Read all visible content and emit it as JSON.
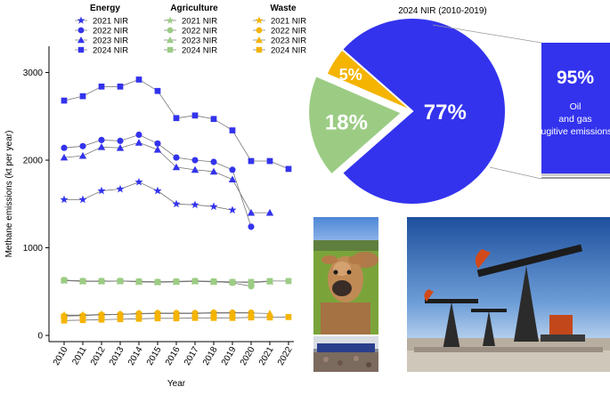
{
  "chart_data": [
    {
      "type": "line",
      "title": "",
      "xlabel": "Year",
      "ylabel": "Methane emissions (kt per year)",
      "xlim": [
        2010,
        2022
      ],
      "ylim": [
        0,
        3300
      ],
      "x_ticks": [
        "2010",
        "2011",
        "2012",
        "2013",
        "2014",
        "2015",
        "2016",
        "2017",
        "2018",
        "2019",
        "2020",
        "2021",
        "2022"
      ],
      "y_ticks": [
        "0",
        "1000",
        "2000",
        "3000"
      ],
      "legend_groups": [
        {
          "title": "Energy",
          "color": "#3333ee",
          "entries": [
            "2021 NIR",
            "2022 NIR",
            "2023 NIR",
            "2024 NIR"
          ]
        },
        {
          "title": "Agriculture",
          "color": "#9ccc84",
          "entries": [
            "2021 NIR",
            "2022 NIR",
            "2023 NIR",
            "2024 NIR"
          ]
        },
        {
          "title": "Waste",
          "color": "#f5b400",
          "entries": [
            "2021 NIR",
            "2022 NIR",
            "2023 NIR",
            "2024 NIR"
          ]
        }
      ],
      "legend_placement": "top",
      "series": [
        {
          "group": "Energy",
          "name": "2021 NIR",
          "marker": "star",
          "color": "#3333ee",
          "x": [
            2010,
            2011,
            2012,
            2013,
            2014,
            2015,
            2016,
            2017,
            2018,
            2019
          ],
          "y": [
            1550,
            1550,
            1650,
            1670,
            1750,
            1650,
            1500,
            1490,
            1470,
            1430
          ]
        },
        {
          "group": "Energy",
          "name": "2022 NIR",
          "marker": "circle",
          "color": "#3333ee",
          "x": [
            2010,
            2011,
            2012,
            2013,
            2014,
            2015,
            2016,
            2017,
            2018,
            2019,
            2020
          ],
          "y": [
            2140,
            2160,
            2230,
            2220,
            2290,
            2190,
            2030,
            2000,
            1980,
            1890,
            1240
          ]
        },
        {
          "group": "Energy",
          "name": "2023 NIR",
          "marker": "triangle",
          "color": "#3333ee",
          "x": [
            2010,
            2011,
            2012,
            2013,
            2014,
            2015,
            2016,
            2017,
            2018,
            2019,
            2020,
            2021
          ],
          "y": [
            2030,
            2050,
            2150,
            2140,
            2200,
            2120,
            1920,
            1890,
            1870,
            1780,
            1400,
            1400
          ]
        },
        {
          "group": "Energy",
          "name": "2024 NIR",
          "marker": "square",
          "color": "#3333ee",
          "x": [
            2010,
            2011,
            2012,
            2013,
            2014,
            2015,
            2016,
            2017,
            2018,
            2019,
            2020,
            2021,
            2022
          ],
          "y": [
            2680,
            2730,
            2840,
            2840,
            2920,
            2790,
            2480,
            2510,
            2470,
            2340,
            1990,
            1990,
            1900
          ]
        },
        {
          "group": "Agriculture",
          "name": "2021 NIR",
          "marker": "star",
          "color": "#9ccc84",
          "x": [
            2010,
            2011,
            2012,
            2013,
            2014,
            2015,
            2016,
            2017,
            2018,
            2019
          ],
          "y": [
            625,
            615,
            615,
            620,
            610,
            605,
            610,
            615,
            610,
            605
          ]
        },
        {
          "group": "Agriculture",
          "name": "2022 NIR",
          "marker": "circle",
          "color": "#9ccc84",
          "x": [
            2010,
            2011,
            2012,
            2013,
            2014,
            2015,
            2016,
            2017,
            2018,
            2019,
            2020
          ],
          "y": [
            630,
            620,
            620,
            620,
            615,
            610,
            615,
            620,
            615,
            600,
            560
          ]
        },
        {
          "group": "Agriculture",
          "name": "2023 NIR",
          "marker": "triangle",
          "color": "#9ccc84",
          "x": [
            2010,
            2011,
            2012,
            2013,
            2014,
            2015,
            2016,
            2017,
            2018,
            2019,
            2020,
            2021
          ],
          "y": [
            630,
            620,
            620,
            620,
            615,
            610,
            615,
            620,
            615,
            610,
            600,
            615
          ]
        },
        {
          "group": "Agriculture",
          "name": "2024 NIR",
          "marker": "square",
          "color": "#9ccc84",
          "x": [
            2010,
            2011,
            2012,
            2013,
            2014,
            2015,
            2016,
            2017,
            2018,
            2019,
            2020,
            2021,
            2022
          ],
          "y": [
            630,
            620,
            620,
            620,
            615,
            610,
            615,
            620,
            615,
            610,
            610,
            620,
            620
          ]
        },
        {
          "group": "Waste",
          "name": "2021 NIR",
          "marker": "star",
          "color": "#f5b400",
          "x": [
            2010,
            2011,
            2012,
            2013,
            2014,
            2015,
            2016,
            2017,
            2018,
            2019
          ],
          "y": [
            230,
            230,
            240,
            240,
            250,
            250,
            250,
            250,
            255,
            255
          ]
        },
        {
          "group": "Waste",
          "name": "2022 NIR",
          "marker": "circle",
          "color": "#f5b400",
          "x": [
            2010,
            2011,
            2012,
            2013,
            2014,
            2015,
            2016,
            2017,
            2018,
            2019,
            2020
          ],
          "y": [
            220,
            225,
            235,
            240,
            250,
            255,
            255,
            255,
            260,
            260,
            260
          ]
        },
        {
          "group": "Waste",
          "name": "2023 NIR",
          "marker": "triangle",
          "color": "#f5b400",
          "x": [
            2010,
            2011,
            2012,
            2013,
            2014,
            2015,
            2016,
            2017,
            2018,
            2019,
            2020,
            2021
          ],
          "y": [
            230,
            230,
            235,
            240,
            245,
            250,
            250,
            250,
            255,
            255,
            255,
            250
          ]
        },
        {
          "group": "Waste",
          "name": "2024 NIR",
          "marker": "square",
          "color": "#f5b400",
          "x": [
            2010,
            2011,
            2012,
            2013,
            2014,
            2015,
            2016,
            2017,
            2018,
            2019,
            2020,
            2021,
            2022
          ],
          "y": [
            170,
            175,
            180,
            185,
            190,
            195,
            195,
            200,
            200,
            200,
            205,
            205,
            210
          ]
        }
      ]
    },
    {
      "type": "pie",
      "title": "2024 NIR (2010-2019)",
      "slices": [
        {
          "label": "77%",
          "value": 77,
          "color": "#3333ee"
        },
        {
          "label": "18%",
          "value": 18,
          "color": "#9ccc84",
          "exploded": true
        },
        {
          "label": "5%",
          "value": 5,
          "color": "#f5b400"
        }
      ],
      "breakout": {
        "label": "95%",
        "value": 95,
        "text": "Oil and gas fugitive emissions",
        "color": "#3333ee"
      }
    }
  ],
  "photos": [
    {
      "icon": "cow-photo"
    },
    {
      "icon": "manure-trailer-photo"
    },
    {
      "icon": "oil-pumpjacks-photo"
    }
  ]
}
